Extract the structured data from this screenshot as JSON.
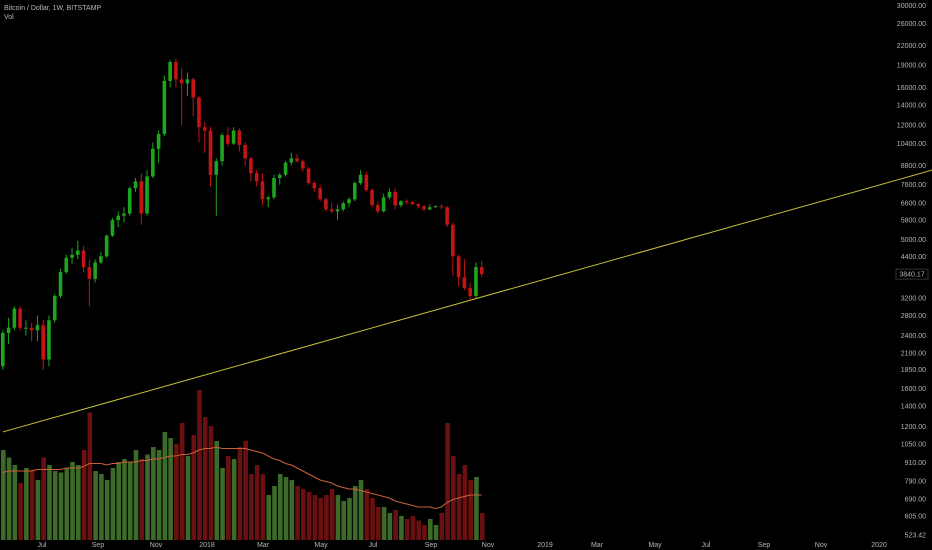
{
  "legend": {
    "title": "Bitcoin / Dollar, 1W, BITSTAMP",
    "volume": "Vol"
  },
  "colors": {
    "background": "#000000",
    "up": "#1ea51e",
    "down": "#c41414",
    "vol_up": "#3c6a28",
    "vol_down": "#6a1010",
    "trendline": "#c8c03a",
    "vol_ma": "#c9603a",
    "axis_text": "#b2b5be"
  },
  "chart_data": {
    "type": "candlestick",
    "title": "Bitcoin / Dollar, 1W, BITSTAMP",
    "y_scale": "log",
    "ylim": [
      523.42,
      30000
    ],
    "last_price": "3840.17",
    "y_ticks": [
      "30000.00",
      "26000.00",
      "22000.00",
      "19000.00",
      "16000.00",
      "14000.00",
      "12000.00",
      "10400.00",
      "8800.00",
      "7600.00",
      "6600.00",
      "5800.00",
      "5000.00",
      "4400.00",
      "3200.00",
      "2800.00",
      "2400.00",
      "2100.00",
      "1850.00",
      "1600.00",
      "1400.00",
      "1200.00",
      "1050.00",
      "910.00",
      "790.00",
      "690.00",
      "605.00",
      "523.42"
    ],
    "x_ticks": [
      "Jul",
      "Sep",
      "Nov",
      "2018",
      "Mar",
      "May",
      "Jul",
      "Sep",
      "Nov",
      "2019",
      "Mar",
      "May",
      "Jul",
      "Sep",
      "Nov",
      "2020"
    ],
    "grid": false,
    "candles": [
      {
        "o": 1900,
        "h": 2500,
        "l": 1850,
        "c": 2450
      },
      {
        "o": 2450,
        "h": 2750,
        "l": 2250,
        "c": 2550
      },
      {
        "o": 2550,
        "h": 3000,
        "l": 2500,
        "c": 2950
      },
      {
        "o": 2950,
        "h": 3000,
        "l": 2500,
        "c": 2550
      },
      {
        "o": 2550,
        "h": 2700,
        "l": 2400,
        "c": 2550
      },
      {
        "o": 2550,
        "h": 2650,
        "l": 2300,
        "c": 2500
      },
      {
        "o": 2500,
        "h": 2800,
        "l": 2300,
        "c": 2600
      },
      {
        "o": 2600,
        "h": 2700,
        "l": 1850,
        "c": 2000
      },
      {
        "o": 2000,
        "h": 2800,
        "l": 1900,
        "c": 2700
      },
      {
        "o": 2700,
        "h": 3300,
        "l": 2650,
        "c": 3250
      },
      {
        "o": 3250,
        "h": 4000,
        "l": 3200,
        "c": 3900
      },
      {
        "o": 3900,
        "h": 4450,
        "l": 3850,
        "c": 4350
      },
      {
        "o": 4350,
        "h": 4700,
        "l": 4150,
        "c": 4450
      },
      {
        "o": 4450,
        "h": 4950,
        "l": 4300,
        "c": 4600
      },
      {
        "o": 4600,
        "h": 4750,
        "l": 3900,
        "c": 4050
      },
      {
        "o": 4050,
        "h": 4300,
        "l": 3000,
        "c": 3700
      },
      {
        "o": 3700,
        "h": 4300,
        "l": 3600,
        "c": 4200
      },
      {
        "o": 4200,
        "h": 4550,
        "l": 4150,
        "c": 4400
      },
      {
        "o": 4400,
        "h": 5200,
        "l": 4350,
        "c": 5150
      },
      {
        "o": 5150,
        "h": 5900,
        "l": 5100,
        "c": 5800
      },
      {
        "o": 5800,
        "h": 6200,
        "l": 5500,
        "c": 6000
      },
      {
        "o": 6000,
        "h": 6400,
        "l": 5700,
        "c": 6100
      },
      {
        "o": 6100,
        "h": 7500,
        "l": 6000,
        "c": 7400
      },
      {
        "o": 7400,
        "h": 8000,
        "l": 7200,
        "c": 7800
      },
      {
        "o": 7800,
        "h": 8300,
        "l": 5600,
        "c": 6100
      },
      {
        "o": 6100,
        "h": 8500,
        "l": 6000,
        "c": 8100
      },
      {
        "o": 8100,
        "h": 10500,
        "l": 8000,
        "c": 10000
      },
      {
        "o": 10000,
        "h": 11500,
        "l": 9000,
        "c": 11200
      },
      {
        "o": 11200,
        "h": 17500,
        "l": 11000,
        "c": 16800
      },
      {
        "o": 16800,
        "h": 19700,
        "l": 16000,
        "c": 19400
      },
      {
        "o": 19400,
        "h": 19900,
        "l": 16000,
        "c": 17000
      },
      {
        "o": 17000,
        "h": 18500,
        "l": 12000,
        "c": 16500
      },
      {
        "o": 16500,
        "h": 17900,
        "l": 15000,
        "c": 17000
      },
      {
        "o": 17000,
        "h": 17200,
        "l": 12800,
        "c": 14800
      },
      {
        "o": 14800,
        "h": 15000,
        "l": 10500,
        "c": 11800
      },
      {
        "o": 11800,
        "h": 12300,
        "l": 9700,
        "c": 11500
      },
      {
        "o": 11500,
        "h": 11800,
        "l": 7500,
        "c": 8200
      },
      {
        "o": 8200,
        "h": 9300,
        "l": 6000,
        "c": 9100
      },
      {
        "o": 9100,
        "h": 11300,
        "l": 8800,
        "c": 11100
      },
      {
        "o": 11100,
        "h": 11800,
        "l": 10200,
        "c": 10400
      },
      {
        "o": 10400,
        "h": 11800,
        "l": 10300,
        "c": 11500
      },
      {
        "o": 11500,
        "h": 11700,
        "l": 9800,
        "c": 10300
      },
      {
        "o": 10300,
        "h": 10500,
        "l": 8800,
        "c": 9300
      },
      {
        "o": 9300,
        "h": 9400,
        "l": 7800,
        "c": 8300
      },
      {
        "o": 8300,
        "h": 8500,
        "l": 7500,
        "c": 7800
      },
      {
        "o": 7800,
        "h": 8300,
        "l": 6500,
        "c": 6800
      },
      {
        "o": 6800,
        "h": 7000,
        "l": 6400,
        "c": 6900
      },
      {
        "o": 6900,
        "h": 8200,
        "l": 6800,
        "c": 8000
      },
      {
        "o": 8000,
        "h": 8300,
        "l": 7600,
        "c": 8200
      },
      {
        "o": 8200,
        "h": 9100,
        "l": 8100,
        "c": 9000
      },
      {
        "o": 9000,
        "h": 9700,
        "l": 8800,
        "c": 9300
      },
      {
        "o": 9300,
        "h": 9600,
        "l": 9000,
        "c": 9100
      },
      {
        "o": 9100,
        "h": 9200,
        "l": 8400,
        "c": 8600
      },
      {
        "o": 8600,
        "h": 8700,
        "l": 7600,
        "c": 7700
      },
      {
        "o": 7700,
        "h": 7800,
        "l": 7200,
        "c": 7400
      },
      {
        "o": 7400,
        "h": 7600,
        "l": 6700,
        "c": 6800
      },
      {
        "o": 6800,
        "h": 6900,
        "l": 6200,
        "c": 6300
      },
      {
        "o": 6300,
        "h": 6600,
        "l": 6100,
        "c": 6200
      },
      {
        "o": 6200,
        "h": 6500,
        "l": 5800,
        "c": 6300
      },
      {
        "o": 6300,
        "h": 6700,
        "l": 6200,
        "c": 6600
      },
      {
        "o": 6600,
        "h": 6900,
        "l": 6400,
        "c": 6800
      },
      {
        "o": 6800,
        "h": 7800,
        "l": 6700,
        "c": 7700
      },
      {
        "o": 7700,
        "h": 8500,
        "l": 7600,
        "c": 8200
      },
      {
        "o": 8200,
        "h": 8400,
        "l": 7200,
        "c": 7300
      },
      {
        "o": 7300,
        "h": 7400,
        "l": 6400,
        "c": 6500
      },
      {
        "o": 6500,
        "h": 6700,
        "l": 6100,
        "c": 6200
      },
      {
        "o": 6200,
        "h": 7100,
        "l": 6150,
        "c": 6900
      },
      {
        "o": 6900,
        "h": 7400,
        "l": 6800,
        "c": 7200
      },
      {
        "o": 7200,
        "h": 7400,
        "l": 6300,
        "c": 6500
      },
      {
        "o": 6500,
        "h": 6750,
        "l": 6400,
        "c": 6700
      },
      {
        "o": 6700,
        "h": 6800,
        "l": 6550,
        "c": 6650
      },
      {
        "o": 6650,
        "h": 6700,
        "l": 6500,
        "c": 6550
      },
      {
        "o": 6550,
        "h": 6600,
        "l": 6350,
        "c": 6450
      },
      {
        "o": 6450,
        "h": 6500,
        "l": 6200,
        "c": 6300
      },
      {
        "o": 6300,
        "h": 6550,
        "l": 6250,
        "c": 6400
      },
      {
        "o": 6400,
        "h": 6500,
        "l": 6350,
        "c": 6450
      },
      {
        "o": 6450,
        "h": 6550,
        "l": 6300,
        "c": 6400
      },
      {
        "o": 6400,
        "h": 6450,
        "l": 5500,
        "c": 5600
      },
      {
        "o": 5600,
        "h": 5700,
        "l": 3800,
        "c": 4400
      },
      {
        "o": 4400,
        "h": 4450,
        "l": 3500,
        "c": 3750
      },
      {
        "o": 3750,
        "h": 4300,
        "l": 3400,
        "c": 3450
      },
      {
        "o": 3450,
        "h": 3600,
        "l": 3150,
        "c": 3250
      },
      {
        "o": 3250,
        "h": 4200,
        "l": 3200,
        "c": 4050
      },
      {
        "o": 4050,
        "h": 4250,
        "l": 3750,
        "c": 3840
      }
    ],
    "volume_series": {
      "name": "Vol"
    },
    "volumes": [
      60,
      55,
      50,
      38,
      48,
      47,
      40,
      55,
      50,
      46,
      45,
      48,
      52,
      50,
      60,
      85,
      46,
      44,
      40,
      48,
      52,
      54,
      52,
      60,
      54,
      57,
      62,
      60,
      72,
      68,
      64,
      78,
      56,
      70,
      100,
      82,
      76,
      66,
      48,
      56,
      54,
      62,
      66,
      44,
      50,
      44,
      30,
      36,
      44,
      42,
      40,
      36,
      34,
      32,
      30,
      28,
      30,
      34,
      30,
      26,
      28,
      36,
      40,
      34,
      28,
      22,
      22,
      18,
      20,
      16,
      14,
      16,
      13,
      10,
      14,
      10,
      18,
      78,
      56,
      44,
      50,
      40,
      42,
      18
    ],
    "volume_ma": [
      45,
      46,
      46,
      46,
      46,
      46,
      47,
      47,
      47,
      47,
      47,
      48,
      48,
      48,
      49,
      51,
      51,
      51,
      50,
      51,
      51,
      52,
      52,
      52,
      53,
      53,
      54,
      54,
      55,
      56,
      56,
      57,
      57,
      58,
      60,
      61,
      61,
      62,
      61,
      61,
      61,
      61,
      61,
      60,
      59,
      58,
      56,
      54,
      53,
      51,
      50,
      48,
      46,
      44,
      42,
      40,
      39,
      38,
      36,
      35,
      34,
      34,
      33,
      32,
      31,
      30,
      29,
      28,
      26,
      25,
      24,
      23,
      22,
      22,
      22,
      21,
      22,
      25,
      27,
      28,
      29,
      30,
      30,
      30
    ],
    "trendline": {
      "from": {
        "index": 0,
        "price": 1150
      },
      "to": {
        "index": 162,
        "price": 8600
      }
    }
  }
}
